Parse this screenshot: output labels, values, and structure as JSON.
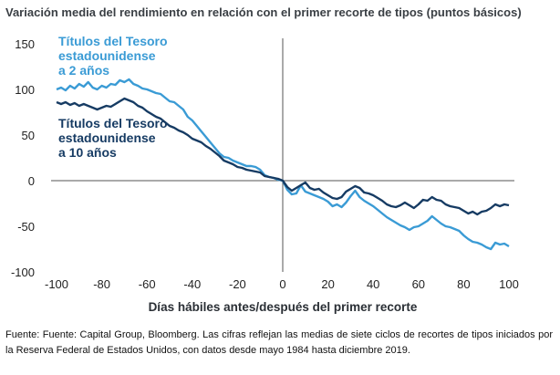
{
  "chart_data": {
    "type": "line",
    "title": "Variación media del rendimiento en relación con el primer recorte de tipos (puntos básicos)",
    "xlabel": "Días hábiles antes/después del primer recorte",
    "ylabel": "",
    "xlim": [
      -100,
      100
    ],
    "ylim": [
      -100,
      150
    ],
    "x_ticks": [
      "-100",
      "-80",
      "-60",
      "-40",
      "-20",
      "0",
      "20",
      "40",
      "60",
      "80",
      "100"
    ],
    "y_ticks": [
      "150",
      "100",
      "50",
      "0",
      "-50",
      "-100"
    ],
    "series": [
      {
        "name": "Títulos del Tesoro estadounidense a 2 años",
        "label_lines": [
          "Títulos del Tesoro",
          "estadounidense",
          "a 2 años"
        ],
        "color": "#3a9bd5",
        "points": [
          [
            -100,
            100
          ],
          [
            -98,
            102
          ],
          [
            -96,
            99
          ],
          [
            -94,
            104
          ],
          [
            -92,
            101
          ],
          [
            -90,
            106
          ],
          [
            -88,
            103
          ],
          [
            -86,
            108
          ],
          [
            -84,
            102
          ],
          [
            -82,
            100
          ],
          [
            -80,
            104
          ],
          [
            -78,
            102
          ],
          [
            -76,
            106
          ],
          [
            -74,
            105
          ],
          [
            -72,
            110
          ],
          [
            -70,
            108
          ],
          [
            -68,
            111
          ],
          [
            -66,
            106
          ],
          [
            -64,
            104
          ],
          [
            -62,
            101
          ],
          [
            -60,
            100
          ],
          [
            -58,
            98
          ],
          [
            -56,
            96
          ],
          [
            -54,
            95
          ],
          [
            -52,
            91
          ],
          [
            -50,
            87
          ],
          [
            -48,
            86
          ],
          [
            -46,
            82
          ],
          [
            -44,
            78
          ],
          [
            -42,
            70
          ],
          [
            -40,
            66
          ],
          [
            -38,
            60
          ],
          [
            -36,
            54
          ],
          [
            -34,
            48
          ],
          [
            -32,
            42
          ],
          [
            -30,
            36
          ],
          [
            -28,
            30
          ],
          [
            -26,
            26
          ],
          [
            -24,
            25
          ],
          [
            -22,
            22
          ],
          [
            -20,
            20
          ],
          [
            -18,
            18
          ],
          [
            -16,
            16
          ],
          [
            -14,
            16
          ],
          [
            -12,
            15
          ],
          [
            -10,
            12
          ],
          [
            -8,
            6
          ],
          [
            -6,
            4
          ],
          [
            -4,
            3
          ],
          [
            -2,
            1
          ],
          [
            0,
            0
          ],
          [
            2,
            -10
          ],
          [
            4,
            -15
          ],
          [
            6,
            -14
          ],
          [
            8,
            -5
          ],
          [
            10,
            -12
          ],
          [
            12,
            -14
          ],
          [
            14,
            -16
          ],
          [
            16,
            -18
          ],
          [
            18,
            -20
          ],
          [
            20,
            -23
          ],
          [
            22,
            -28
          ],
          [
            24,
            -26
          ],
          [
            26,
            -29
          ],
          [
            28,
            -24
          ],
          [
            30,
            -17
          ],
          [
            32,
            -11
          ],
          [
            34,
            -18
          ],
          [
            36,
            -22
          ],
          [
            38,
            -25
          ],
          [
            40,
            -28
          ],
          [
            42,
            -32
          ],
          [
            44,
            -36
          ],
          [
            46,
            -40
          ],
          [
            48,
            -43
          ],
          [
            50,
            -46
          ],
          [
            52,
            -49
          ],
          [
            54,
            -51
          ],
          [
            56,
            -54
          ],
          [
            58,
            -51
          ],
          [
            60,
            -50
          ],
          [
            62,
            -47
          ],
          [
            64,
            -44
          ],
          [
            66,
            -39
          ],
          [
            68,
            -43
          ],
          [
            70,
            -47
          ],
          [
            72,
            -50
          ],
          [
            74,
            -51
          ],
          [
            76,
            -53
          ],
          [
            78,
            -55
          ],
          [
            80,
            -60
          ],
          [
            82,
            -64
          ],
          [
            84,
            -67
          ],
          [
            86,
            -68
          ],
          [
            88,
            -70
          ],
          [
            90,
            -73
          ],
          [
            92,
            -75
          ],
          [
            94,
            -68
          ],
          [
            96,
            -70
          ],
          [
            98,
            -69
          ],
          [
            100,
            -72
          ]
        ]
      },
      {
        "name": "Títulos del Tesoro estadounidense a 10 años",
        "label_lines": [
          "Títulos del Tesoro",
          "estadounidense",
          "a 10 años"
        ],
        "color": "#163b63",
        "points": [
          [
            -100,
            86
          ],
          [
            -98,
            84
          ],
          [
            -96,
            86
          ],
          [
            -94,
            83
          ],
          [
            -92,
            85
          ],
          [
            -90,
            82
          ],
          [
            -88,
            84
          ],
          [
            -86,
            82
          ],
          [
            -84,
            80
          ],
          [
            -82,
            78
          ],
          [
            -80,
            80
          ],
          [
            -78,
            82
          ],
          [
            -76,
            81
          ],
          [
            -74,
            84
          ],
          [
            -72,
            87
          ],
          [
            -70,
            90
          ],
          [
            -68,
            88
          ],
          [
            -66,
            86
          ],
          [
            -64,
            82
          ],
          [
            -62,
            80
          ],
          [
            -60,
            76
          ],
          [
            -58,
            73
          ],
          [
            -56,
            70
          ],
          [
            -54,
            68
          ],
          [
            -52,
            64
          ],
          [
            -50,
            60
          ],
          [
            -48,
            58
          ],
          [
            -46,
            55
          ],
          [
            -44,
            53
          ],
          [
            -42,
            50
          ],
          [
            -40,
            46
          ],
          [
            -38,
            44
          ],
          [
            -36,
            42
          ],
          [
            -34,
            38
          ],
          [
            -32,
            35
          ],
          [
            -30,
            31
          ],
          [
            -28,
            27
          ],
          [
            -26,
            22
          ],
          [
            -24,
            20
          ],
          [
            -22,
            18
          ],
          [
            -20,
            15
          ],
          [
            -18,
            14
          ],
          [
            -16,
            12
          ],
          [
            -14,
            11
          ],
          [
            -12,
            10
          ],
          [
            -10,
            9
          ],
          [
            -8,
            5
          ],
          [
            -6,
            4
          ],
          [
            -4,
            3
          ],
          [
            -2,
            2
          ],
          [
            0,
            0
          ],
          [
            2,
            -7
          ],
          [
            4,
            -11
          ],
          [
            6,
            -8
          ],
          [
            8,
            -5
          ],
          [
            10,
            -2
          ],
          [
            12,
            -8
          ],
          [
            14,
            -10
          ],
          [
            16,
            -9
          ],
          [
            18,
            -13
          ],
          [
            20,
            -16
          ],
          [
            22,
            -19
          ],
          [
            24,
            -20
          ],
          [
            26,
            -18
          ],
          [
            28,
            -12
          ],
          [
            30,
            -9
          ],
          [
            32,
            -6
          ],
          [
            34,
            -8
          ],
          [
            36,
            -13
          ],
          [
            38,
            -14
          ],
          [
            40,
            -16
          ],
          [
            42,
            -19
          ],
          [
            44,
            -22
          ],
          [
            46,
            -26
          ],
          [
            48,
            -28
          ],
          [
            50,
            -29
          ],
          [
            52,
            -27
          ],
          [
            54,
            -24
          ],
          [
            56,
            -27
          ],
          [
            58,
            -30
          ],
          [
            60,
            -26
          ],
          [
            62,
            -21
          ],
          [
            64,
            -22
          ],
          [
            66,
            -18
          ],
          [
            68,
            -21
          ],
          [
            70,
            -22
          ],
          [
            72,
            -26
          ],
          [
            74,
            -28
          ],
          [
            76,
            -29
          ],
          [
            78,
            -30
          ],
          [
            80,
            -33
          ],
          [
            82,
            -36
          ],
          [
            84,
            -34
          ],
          [
            86,
            -37
          ],
          [
            88,
            -34
          ],
          [
            90,
            -33
          ],
          [
            92,
            -30
          ],
          [
            94,
            -26
          ],
          [
            96,
            -28
          ],
          [
            98,
            -26
          ],
          [
            100,
            -27
          ]
        ]
      }
    ]
  },
  "footer": {
    "source": "Fuente: Fuente: Capital Group, Bloomberg. Las cifras reflejan las medias de siete ciclos de recortes de tipos iniciados por la Reserva Federal de Estados Unidos, con datos desde mayo 1984 hasta diciembre 2019."
  }
}
